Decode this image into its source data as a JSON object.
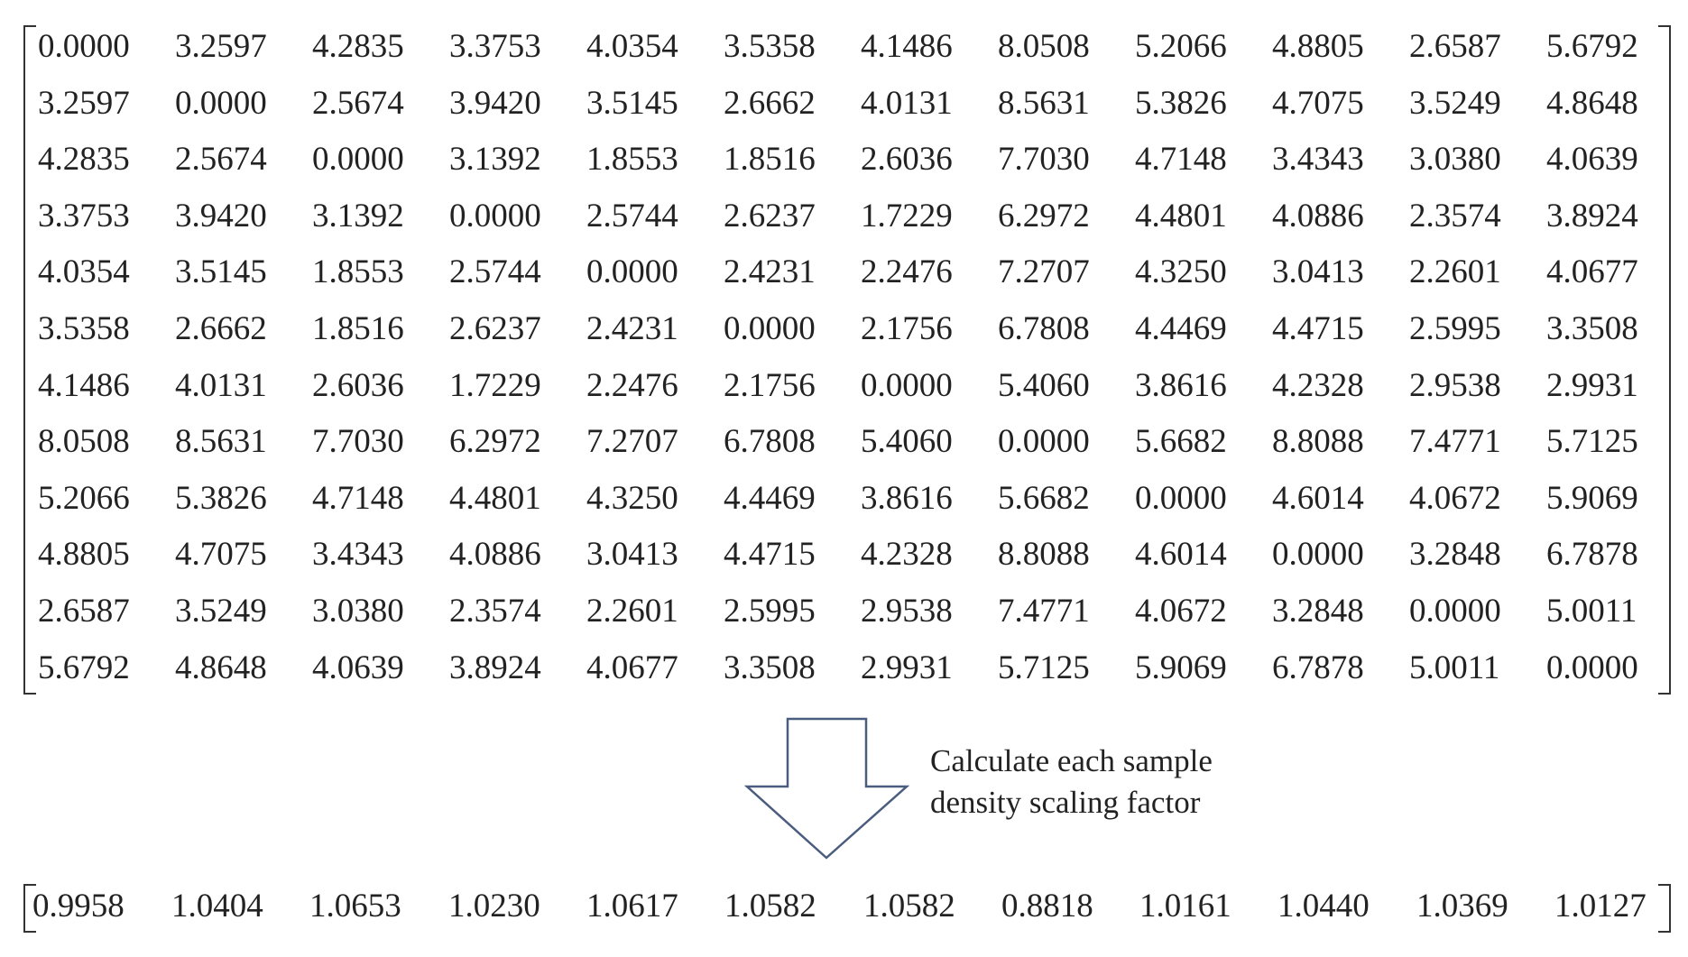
{
  "distance_matrix": [
    [
      "0.0000",
      "3.2597",
      "4.2835",
      "3.3753",
      "4.0354",
      "3.5358",
      "4.1486",
      "8.0508",
      "5.2066",
      "4.8805",
      "2.6587",
      "5.6792"
    ],
    [
      "3.2597",
      "0.0000",
      "2.5674",
      "3.9420",
      "3.5145",
      "2.6662",
      "4.0131",
      "8.5631",
      "5.3826",
      "4.7075",
      "3.5249",
      "4.8648"
    ],
    [
      "4.2835",
      "2.5674",
      "0.0000",
      "3.1392",
      "1.8553",
      "1.8516",
      "2.6036",
      "7.7030",
      "4.7148",
      "3.4343",
      "3.0380",
      "4.0639"
    ],
    [
      "3.3753",
      "3.9420",
      "3.1392",
      "0.0000",
      "2.5744",
      "2.6237",
      "1.7229",
      "6.2972",
      "4.4801",
      "4.0886",
      "2.3574",
      "3.8924"
    ],
    [
      "4.0354",
      "3.5145",
      "1.8553",
      "2.5744",
      "0.0000",
      "2.4231",
      "2.2476",
      "7.2707",
      "4.3250",
      "3.0413",
      "2.2601",
      "4.0677"
    ],
    [
      "3.5358",
      "2.6662",
      "1.8516",
      "2.6237",
      "2.4231",
      "0.0000",
      "2.1756",
      "6.7808",
      "4.4469",
      "4.4715",
      "2.5995",
      "3.3508"
    ],
    [
      "4.1486",
      "4.0131",
      "2.6036",
      "1.7229",
      "2.2476",
      "2.1756",
      "0.0000",
      "5.4060",
      "3.8616",
      "4.2328",
      "2.9538",
      "2.9931"
    ],
    [
      "8.0508",
      "8.5631",
      "7.7030",
      "6.2972",
      "7.2707",
      "6.7808",
      "5.4060",
      "0.0000",
      "5.6682",
      "8.8088",
      "7.4771",
      "5.7125"
    ],
    [
      "5.2066",
      "5.3826",
      "4.7148",
      "4.4801",
      "4.3250",
      "4.4469",
      "3.8616",
      "5.6682",
      "0.0000",
      "4.6014",
      "4.0672",
      "5.9069"
    ],
    [
      "4.8805",
      "4.7075",
      "3.4343",
      "4.0886",
      "3.0413",
      "4.4715",
      "4.2328",
      "8.8088",
      "4.6014",
      "0.0000",
      "3.2848",
      "6.7878"
    ],
    [
      "2.6587",
      "3.5249",
      "3.0380",
      "2.3574",
      "2.2601",
      "2.5995",
      "2.9538",
      "7.4771",
      "4.0672",
      "3.2848",
      "0.0000",
      "5.0011"
    ],
    [
      "5.6792",
      "4.8648",
      "4.0639",
      "3.8924",
      "4.0677",
      "3.3508",
      "2.9931",
      "5.7125",
      "5.9069",
      "6.7878",
      "5.0011",
      "0.0000"
    ]
  ],
  "arrow_caption": [
    "Calculate each sample",
    "density scaling factor"
  ],
  "scaling_factors": [
    "0.9958",
    "1.0404",
    "1.0653",
    "1.0230",
    "1.0617",
    "1.0582",
    "1.0582",
    "0.8818",
    "1.0161",
    "1.0440",
    "1.0369",
    "1.0127"
  ],
  "colors": {
    "text": "#222222",
    "lines": "#333333",
    "arrow_stroke": "#4a5d7e"
  }
}
